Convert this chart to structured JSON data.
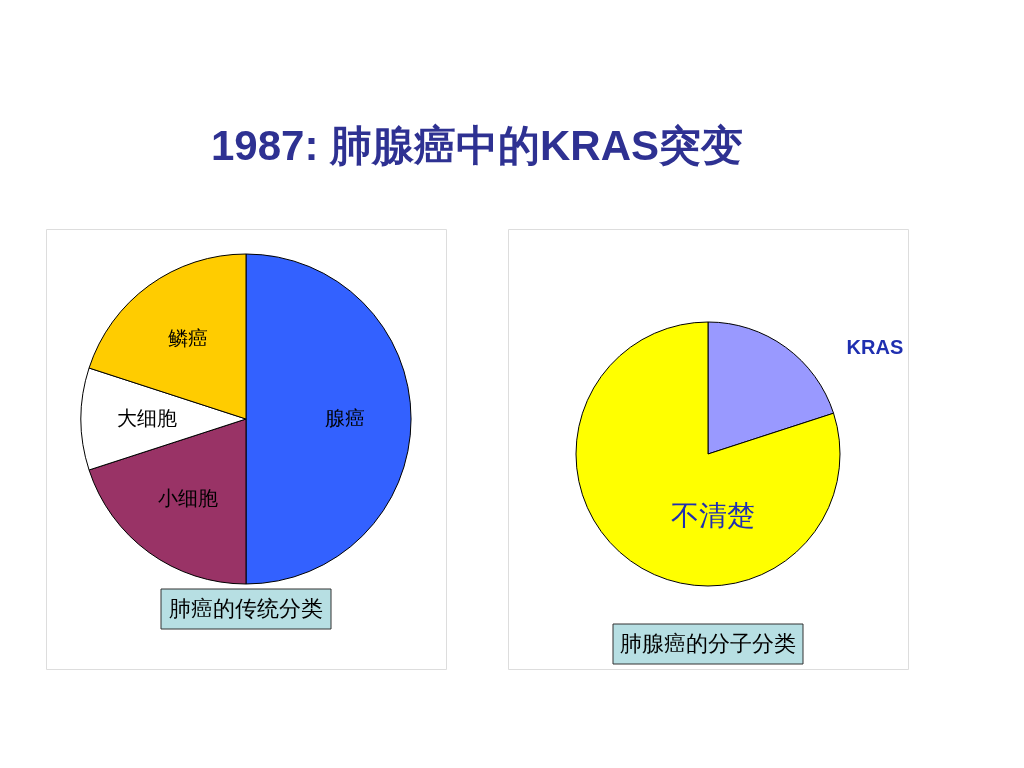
{
  "chart_data": [
    {
      "type": "pie",
      "title": "1987: 肺腺癌中的KRAS突变",
      "categories": [
        "腺癌",
        "小细胞",
        "大细胞",
        "鳞癌"
      ],
      "values": [
        50,
        20,
        10,
        20
      ],
      "colors": [
        "#3361ff",
        "#993366",
        "#ffffff",
        "#ffcc00"
      ],
      "annotations": [
        "肺癌的传统分类"
      ],
      "legend": false
    },
    {
      "type": "pie",
      "categories": [
        "KRAS",
        "不清楚"
      ],
      "values": [
        20,
        80
      ],
      "colors": [
        "#9999ff",
        "#ffff00"
      ],
      "annotations": [
        "肺腺癌的分子分类"
      ],
      "legend": false
    }
  ]
}
